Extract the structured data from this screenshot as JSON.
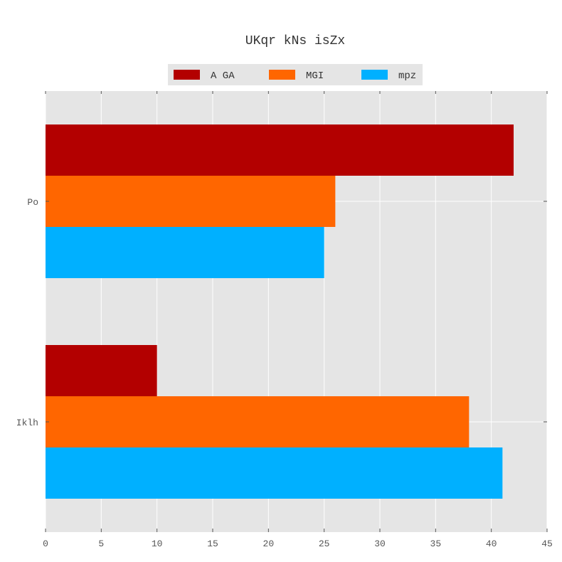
{
  "chart_data": {
    "type": "bar",
    "orientation": "horizontal",
    "title": "UKqr kNs isZx",
    "xlabel": "",
    "ylabel": "",
    "categories": [
      "Po",
      "Iklh"
    ],
    "xlim": [
      0,
      45
    ],
    "xticks": [
      0,
      5,
      10,
      15,
      20,
      25,
      30,
      35,
      40,
      45
    ],
    "grid": true,
    "legend_position": "top-center",
    "series": [
      {
        "name": "A GA",
        "color": "#b30000",
        "values": [
          42,
          10
        ]
      },
      {
        "name": "MGI",
        "color": "#ff6600",
        "values": [
          26,
          38
        ]
      },
      {
        "name": "mpz",
        "color": "#00b0ff",
        "values": [
          25,
          41
        ]
      }
    ]
  }
}
